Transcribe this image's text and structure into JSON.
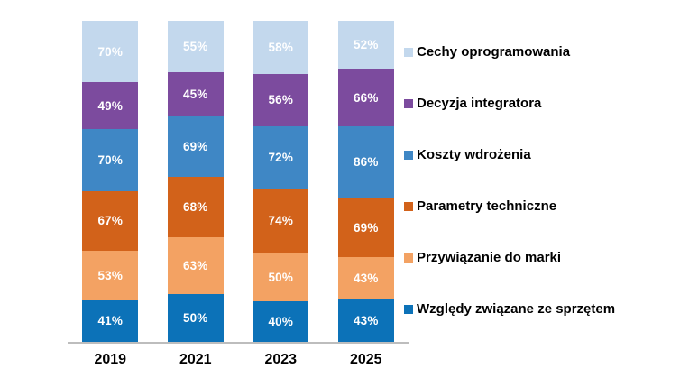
{
  "chart_data": {
    "type": "bar",
    "stacked": true,
    "normalized": true,
    "orientation": "vertical",
    "title": "",
    "xlabel": "",
    "ylabel": "",
    "grid": false,
    "legend_position": "right",
    "value_label_suffix": "%",
    "value_label_color": "#ffffff",
    "axis_line_color": "#bdbdbd",
    "categories": [
      "2019",
      "2021",
      "2023",
      "2025"
    ],
    "series": [
      {
        "name": "Cechy oprogramowania",
        "color": "#c3d8ed",
        "values": [
          70,
          55,
          58,
          52
        ]
      },
      {
        "name": "Decyzja integratora",
        "color": "#7c4b9e",
        "values": [
          49,
          45,
          56,
          66
        ]
      },
      {
        "name": "Koszty wdrożenia",
        "color": "#3f87c5",
        "values": [
          70,
          69,
          72,
          86
        ]
      },
      {
        "name": "Parametry techniczne",
        "color": "#d2621a",
        "values": [
          67,
          68,
          74,
          69
        ]
      },
      {
        "name": "Przywiązanie do marki",
        "color": "#f3a263",
        "values": [
          53,
          63,
          50,
          43
        ]
      },
      {
        "name": "Względy związane ze sprzętem",
        "color": "#0c72b8",
        "values": [
          41,
          50,
          40,
          43
        ]
      }
    ]
  }
}
